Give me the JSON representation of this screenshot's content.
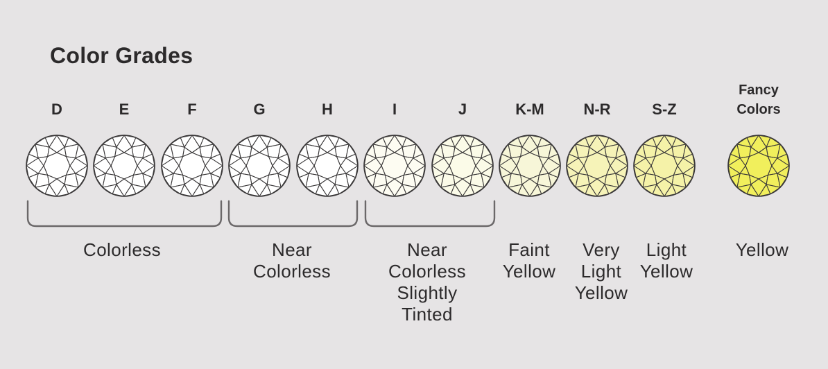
{
  "title": "Color Grades",
  "grades": [
    {
      "label": "D",
      "color": "#ffffff"
    },
    {
      "label": "E",
      "color": "#ffffff"
    },
    {
      "label": "F",
      "color": "#ffffff"
    },
    {
      "label": "G",
      "color": "#ffffff"
    },
    {
      "label": "H",
      "color": "#ffffff"
    },
    {
      "label": "I",
      "color": "#fdfcf2"
    },
    {
      "label": "J",
      "color": "#fbfbe8"
    },
    {
      "label": "K-M",
      "color": "#f7f6d8"
    },
    {
      "label": "N-R",
      "color": "#f6f3b8"
    },
    {
      "label": "S-Z",
      "color": "#f5f2a8"
    },
    {
      "label": "Fancy\nColors",
      "color": "#f1ef5c"
    }
  ],
  "categories": [
    {
      "label": "Colorless"
    },
    {
      "label": "Near\nColorless"
    },
    {
      "label": "Near\nColorless\nSlightly\nTinted"
    },
    {
      "label": "Faint\nYellow"
    },
    {
      "label": "Very\nLight\nYellow"
    },
    {
      "label": "Light\nYellow"
    },
    {
      "label": "Yellow"
    }
  ],
  "colors": {
    "background": "#e6e4e5",
    "outline": "#3a3839",
    "bracket": "#6b6869"
  }
}
